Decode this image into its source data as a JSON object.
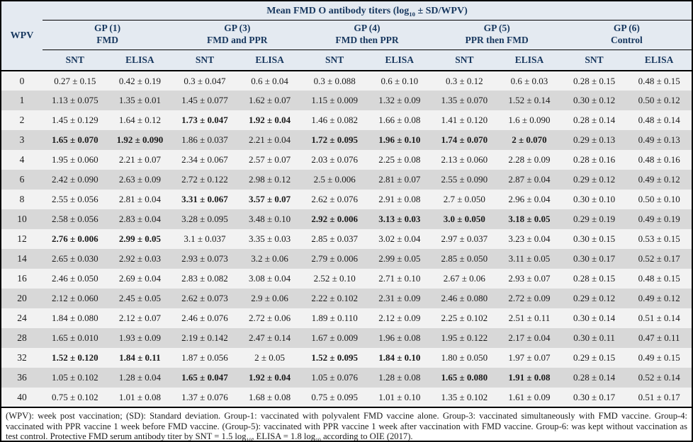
{
  "table": {
    "title_parts": [
      {
        "text": "Mean FMD O antibody titers (log"
      },
      {
        "sub": "10"
      },
      {
        "text": " ± SD/WPV)"
      }
    ],
    "wpv_header": "WPV",
    "groups": [
      {
        "line1": "GP (1)",
        "line2": "FMD"
      },
      {
        "line1": "GP (3)",
        "line2": "FMD and PPR"
      },
      {
        "line1": "GP (4)",
        "line2": "FMD then PPR"
      },
      {
        "line1": "GP (5)",
        "line2": "PPR then FMD"
      },
      {
        "line1": "GP (6)",
        "line2": "Control"
      }
    ],
    "sub_headers": [
      "SNT",
      "ELISA"
    ],
    "rows": [
      {
        "wpv": "0",
        "bold": [],
        "values": [
          "0.27 ± 0.15",
          "0.42 ± 0.19",
          "0.3 ± 0.047",
          "0.6 ± 0.04",
          "0.3 ± 0.088",
          "0.6 ± 0.10",
          "0.3 ± 0.12",
          "0.6 ± 0.03",
          "0.28 ± 0.15",
          "0.48 ± 0.15"
        ]
      },
      {
        "wpv": "1",
        "bold": [],
        "values": [
          "1.13 ± 0.075",
          "1.35 ± 0.01",
          "1.45 ± 0.077",
          "1.62 ± 0.07",
          "1.15 ± 0.009",
          "1.32 ± 0.09",
          "1.35 ± 0.070",
          "1.52 ± 0.14",
          "0.30 ± 0.12",
          "0.50 ± 0.12"
        ]
      },
      {
        "wpv": "2",
        "bold": [
          2,
          3
        ],
        "values": [
          "1.45 ± 0.129",
          "1.64 ± 0.12",
          "1.73 ± 0.047",
          "1.92 ± 0.04",
          "1.46 ± 0.082",
          "1.66 ± 0.08",
          "1.41 ± 0.120",
          "1.6 ± 0.090",
          "0.28 ± 0.14",
          "0.48 ± 0.14"
        ]
      },
      {
        "wpv": "3",
        "bold": [
          0,
          1,
          4,
          5,
          6,
          7
        ],
        "values": [
          "1.65 ± 0.070",
          "1.92 ± 0.090",
          "1.86 ± 0.037",
          "2.21 ± 0.04",
          "1.72 ± 0.095",
          "1.96 ± 0.10",
          "1.74 ± 0.070",
          "2 ± 0.070",
          "0.29 ± 0.13",
          "0.49 ± 0.13"
        ]
      },
      {
        "wpv": "4",
        "bold": [],
        "values": [
          "1.95 ± 0.060",
          "2.21 ± 0.07",
          "2.34 ± 0.067",
          "2.57 ± 0.07",
          "2.03 ± 0.076",
          "2.25 ± 0.08",
          "2.13 ± 0.060",
          "2.28 ± 0.09",
          "0.28 ± 0.16",
          "0.48 ± 0.16"
        ]
      },
      {
        "wpv": "6",
        "bold": [],
        "values": [
          "2.42 ± 0.090",
          "2.63 ± 0.09",
          "2.72 ± 0.122",
          "2.98 ± 0.12",
          "2.5 ± 0.006",
          "2.81 ± 0.07",
          "2.55 ± 0.090",
          "2.87 ± 0.04",
          "0.29 ± 0.12",
          "0.49 ± 0.12"
        ]
      },
      {
        "wpv": "8",
        "bold": [
          2,
          3
        ],
        "values": [
          "2.55 ± 0.056",
          "2.81 ± 0.04",
          "3.31 ± 0.067",
          "3.57 ± 0.07",
          "2.62 ± 0.076",
          "2.91 ± 0.08",
          "2.7 ± 0.050",
          "2.96 ± 0.04",
          "0.30 ± 0.10",
          "0.50 ± 0.10"
        ]
      },
      {
        "wpv": "10",
        "bold": [
          4,
          5,
          6,
          7
        ],
        "values": [
          "2.58 ± 0.056",
          "2.83 ± 0.04",
          "3.28 ± 0.095",
          "3.48 ± 0.10",
          "2.92 ± 0.006",
          "3.13 ± 0.03",
          "3.0 ± 0.050",
          "3.18 ± 0.05",
          "0.29 ± 0.19",
          "0.49 ± 0.19"
        ]
      },
      {
        "wpv": "12",
        "bold": [
          0,
          1
        ],
        "values": [
          "2.76 ± 0.006",
          "2.99 ± 0.05",
          "3.1 ± 0.037",
          "3.35 ± 0.03",
          "2.85 ± 0.037",
          "3.02 ± 0.04",
          "2.97 ± 0.037",
          "3.23 ± 0.04",
          "0.30 ± 0.15",
          "0.53 ± 0.15"
        ]
      },
      {
        "wpv": "14",
        "bold": [],
        "values": [
          "2.65 ± 0.030",
          "2.92 ± 0.03",
          "2.93 ± 0.073",
          "3.2 ± 0.06",
          "2.79 ± 0.006",
          "2.99 ± 0.05",
          "2.85 ± 0.050",
          "3.11 ± 0.05",
          "0.30 ± 0.17",
          "0.52 ± 0.17"
        ]
      },
      {
        "wpv": "16",
        "bold": [],
        "values": [
          "2.46 ± 0.050",
          "2.69 ± 0.04",
          "2.83 ± 0.082",
          "3.08 ± 0.04",
          "2.52 ± 0.10",
          "2.71 ± 0.10",
          "2.67 ± 0.06",
          "2.93 ± 0.07",
          "0.28 ± 0.15",
          "0.48 ± 0.15"
        ]
      },
      {
        "wpv": "20",
        "bold": [],
        "values": [
          "2.12 ± 0.060",
          "2.45 ± 0.05",
          "2.62 ± 0.073",
          "2.9 ± 0.06",
          "2.22 ± 0.102",
          "2.31 ± 0.09",
          "2.46 ± 0.080",
          "2.72 ± 0.09",
          "0.29 ± 0.12",
          "0.49 ± 0.12"
        ]
      },
      {
        "wpv": "24",
        "bold": [],
        "values": [
          "1.84 ± 0.080",
          "2.12 ± 0.07",
          "2.46 ± 0.076",
          "2.72 ± 0.06",
          "1.89 ± 0.110",
          "2.12 ± 0.09",
          "2.25 ± 0.102",
          "2.51 ± 0.11",
          "0.30 ± 0.14",
          "0.51 ± 0.14"
        ]
      },
      {
        "wpv": "28",
        "bold": [],
        "values": [
          "1.65 ± 0.010",
          "1.93 ± 0.09",
          "2.19 ± 0.142",
          "2.47 ± 0.14",
          "1.67 ± 0.009",
          "1.96 ± 0.08",
          "1.95 ± 0.122",
          "2.17 ± 0.04",
          "0.30 ± 0.11",
          "0.47 ± 0.11"
        ]
      },
      {
        "wpv": "32",
        "bold": [
          0,
          1,
          4,
          5
        ],
        "values": [
          "1.52 ± 0.120",
          "1.84 ± 0.11",
          "1.87 ± 0.056",
          "2 ± 0.05",
          "1.52 ± 0.095",
          "1.84 ± 0.10",
          "1.80 ± 0.050",
          "1.97 ± 0.07",
          "0.29 ± 0.15",
          "0.49 ± 0.15"
        ]
      },
      {
        "wpv": "36",
        "bold": [
          2,
          3,
          6,
          7
        ],
        "values": [
          "1.05 ± 0.102",
          "1.28 ± 0.04",
          "1.65 ± 0.047",
          "1.92 ± 0.04",
          "1.05 ± 0.076",
          "1.28 ± 0.08",
          "1.65 ± 0.080",
          "1.91 ± 0.08",
          "0.28 ± 0.14",
          "0.52 ± 0.14"
        ]
      },
      {
        "wpv": "40",
        "bold": [],
        "values": [
          "0.75 ± 0.102",
          "1.01 ± 0.08",
          "1.37 ± 0.076",
          "1.68 ± 0.08",
          "0.75 ± 0.095",
          "1.01 ± 0.10",
          "1.35 ± 0.102",
          "1.61 ± 0.09",
          "0.30 ± 0.17",
          "0.51 ± 0.17"
        ]
      }
    ]
  },
  "footnote_parts": [
    {
      "text": "(WPV): week post vaccination; (SD): Standard deviation. Group-1: vaccinated with polyvalent FMD vaccine alone. Group-3: vaccinated simultaneously with FMD vaccine. Group-4: vaccinated with PPR vaccine 1 week before FMD vaccine. (Group-5): vaccinated with PPR vaccine 1 week after vaccination with FMD vaccine. Group-6: was kept without vaccination as test control. Protective FMD serum antibody titer by SNT = 1.5 log"
    },
    {
      "sub": "10"
    },
    {
      "text": ", ELISA = 1.8 log"
    },
    {
      "sub": "10"
    },
    {
      "text": " according to OIE (2017)."
    }
  ],
  "colors": {
    "header_bg": "#e4eaf1",
    "header_text": "#17375e",
    "row_light": "#f2f2f2",
    "row_dark": "#d8d8d8",
    "border": "#000000"
  }
}
